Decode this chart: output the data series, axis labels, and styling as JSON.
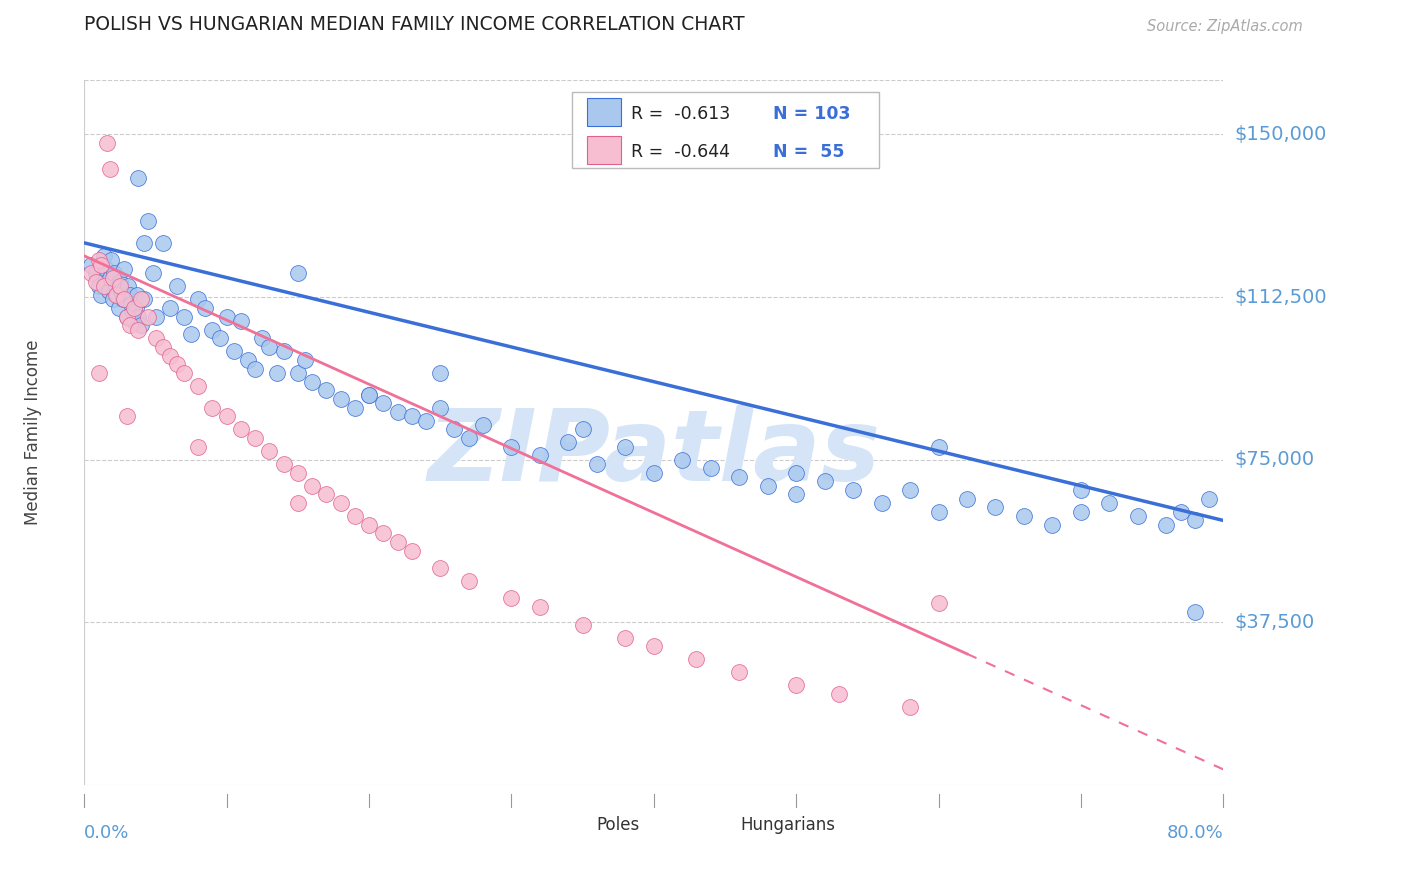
{
  "title": "POLISH VS HUNGARIAN MEDIAN FAMILY INCOME CORRELATION CHART",
  "source": "Source: ZipAtlas.com",
  "ylabel": "Median Family Income",
  "ytick_labels": [
    "$37,500",
    "$75,000",
    "$112,500",
    "$150,000"
  ],
  "ytick_values": [
    37500,
    75000,
    112500,
    150000
  ],
  "ylim": [
    0,
    162500
  ],
  "xlim": [
    0.0,
    0.8
  ],
  "poles_label": "Poles",
  "hung_label": "Hungarians",
  "poles_scatter_color": "#aac8ee",
  "hung_scatter_color": "#f7bdd0",
  "poles_line_color": "#3a6fd8",
  "hung_line_color": "#f07098",
  "poles_edge_color": "#3a6fd8",
  "hung_edge_color": "#e06090",
  "watermark_color": "#d5e5f7",
  "title_color": "#222222",
  "axis_label_color": "#5b9bd5",
  "source_color": "#aaaaaa",
  "ylabel_color": "#444444",
  "grid_color": "#cccccc",
  "legend_r_poles": "R =  -0.613",
  "legend_n_poles": "N = 103",
  "legend_r_hung": "R =  -0.644",
  "legend_n_hung": "N =  55",
  "poles_line_intercept": 125000,
  "poles_line_slope": -80000,
  "hung_line_intercept": 122000,
  "hung_line_slope": -148000,
  "poles_x": [
    0.005,
    0.008,
    0.01,
    0.012,
    0.014,
    0.015,
    0.016,
    0.017,
    0.018,
    0.019,
    0.02,
    0.021,
    0.022,
    0.023,
    0.024,
    0.025,
    0.026,
    0.027,
    0.028,
    0.03,
    0.031,
    0.032,
    0.033,
    0.034,
    0.035,
    0.036,
    0.037,
    0.038,
    0.04,
    0.042,
    0.045,
    0.048,
    0.05,
    0.055,
    0.06,
    0.065,
    0.07,
    0.075,
    0.08,
    0.085,
    0.09,
    0.095,
    0.1,
    0.105,
    0.11,
    0.115,
    0.12,
    0.125,
    0.13,
    0.135,
    0.14,
    0.15,
    0.155,
    0.16,
    0.17,
    0.18,
    0.19,
    0.2,
    0.21,
    0.22,
    0.23,
    0.24,
    0.25,
    0.26,
    0.27,
    0.28,
    0.3,
    0.32,
    0.34,
    0.36,
    0.38,
    0.4,
    0.42,
    0.44,
    0.46,
    0.48,
    0.5,
    0.52,
    0.54,
    0.56,
    0.58,
    0.6,
    0.62,
    0.64,
    0.66,
    0.68,
    0.7,
    0.72,
    0.74,
    0.76,
    0.77,
    0.78,
    0.79,
    0.038,
    0.042,
    0.15,
    0.2,
    0.25,
    0.35,
    0.5,
    0.6,
    0.7,
    0.78
  ],
  "poles_y": [
    120000,
    118000,
    115000,
    113000,
    122000,
    119000,
    116000,
    114000,
    117000,
    121000,
    112000,
    118000,
    115000,
    113000,
    110000,
    116000,
    114000,
    112000,
    119000,
    108000,
    115000,
    113000,
    111000,
    109000,
    107000,
    110000,
    113000,
    108000,
    106000,
    112000,
    130000,
    118000,
    108000,
    125000,
    110000,
    115000,
    108000,
    104000,
    112000,
    110000,
    105000,
    103000,
    108000,
    100000,
    107000,
    98000,
    96000,
    103000,
    101000,
    95000,
    100000,
    95000,
    98000,
    93000,
    91000,
    89000,
    87000,
    90000,
    88000,
    86000,
    85000,
    84000,
    87000,
    82000,
    80000,
    83000,
    78000,
    76000,
    79000,
    74000,
    78000,
    72000,
    75000,
    73000,
    71000,
    69000,
    67000,
    70000,
    68000,
    65000,
    68000,
    63000,
    66000,
    64000,
    62000,
    60000,
    63000,
    65000,
    62000,
    60000,
    63000,
    61000,
    66000,
    140000,
    125000,
    118000,
    90000,
    95000,
    82000,
    72000,
    78000,
    68000,
    40000
  ],
  "hung_x": [
    0.005,
    0.008,
    0.01,
    0.012,
    0.014,
    0.016,
    0.018,
    0.02,
    0.022,
    0.025,
    0.028,
    0.03,
    0.032,
    0.035,
    0.038,
    0.04,
    0.045,
    0.05,
    0.055,
    0.06,
    0.065,
    0.07,
    0.08,
    0.09,
    0.1,
    0.11,
    0.12,
    0.13,
    0.14,
    0.15,
    0.16,
    0.17,
    0.18,
    0.19,
    0.2,
    0.21,
    0.22,
    0.23,
    0.25,
    0.27,
    0.3,
    0.32,
    0.35,
    0.38,
    0.4,
    0.43,
    0.46,
    0.5,
    0.53,
    0.58,
    0.01,
    0.03,
    0.08,
    0.15,
    0.6
  ],
  "hung_y": [
    118000,
    116000,
    121000,
    120000,
    115000,
    148000,
    142000,
    117000,
    113000,
    115000,
    112000,
    108000,
    106000,
    110000,
    105000,
    112000,
    108000,
    103000,
    101000,
    99000,
    97000,
    95000,
    92000,
    87000,
    85000,
    82000,
    80000,
    77000,
    74000,
    72000,
    69000,
    67000,
    65000,
    62000,
    60000,
    58000,
    56000,
    54000,
    50000,
    47000,
    43000,
    41000,
    37000,
    34000,
    32000,
    29000,
    26000,
    23000,
    21000,
    18000,
    95000,
    85000,
    78000,
    65000,
    42000
  ]
}
